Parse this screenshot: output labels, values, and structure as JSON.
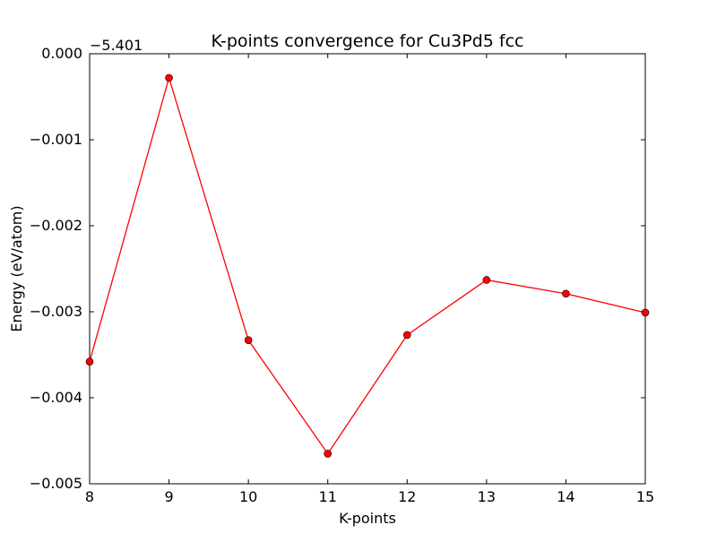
{
  "chart_data": {
    "type": "line",
    "title": "K-points convergence for Cu3Pd5 fcc",
    "xlabel": "K-points",
    "ylabel": "Energy (eV/atom)",
    "y_offset_label": "−5.401",
    "y_offset": -5.401,
    "xlim": [
      8,
      15
    ],
    "ylim": [
      -0.005,
      0.0
    ],
    "x_ticks": [
      8,
      9,
      10,
      11,
      12,
      13,
      14,
      15
    ],
    "x_tick_labels": [
      "8",
      "9",
      "10",
      "11",
      "12",
      "13",
      "14",
      "15"
    ],
    "y_ticks": [
      0.0,
      -0.001,
      -0.002,
      -0.003,
      -0.004,
      -0.005
    ],
    "y_tick_labels": [
      "0.000",
      "−0.001",
      "−0.002",
      "−0.003",
      "−0.004",
      "−0.005"
    ],
    "grid": false,
    "legend": "none",
    "series": [
      {
        "color": "#ff0000",
        "marker_color": "#ff0000",
        "x": [
          8,
          9,
          10,
          11,
          12,
          13,
          14,
          15
        ],
        "y": [
          -0.00358,
          -0.00028,
          -0.00333,
          -0.00465,
          -0.00327,
          -0.00263,
          -0.00279,
          -0.00301
        ]
      }
    ]
  }
}
